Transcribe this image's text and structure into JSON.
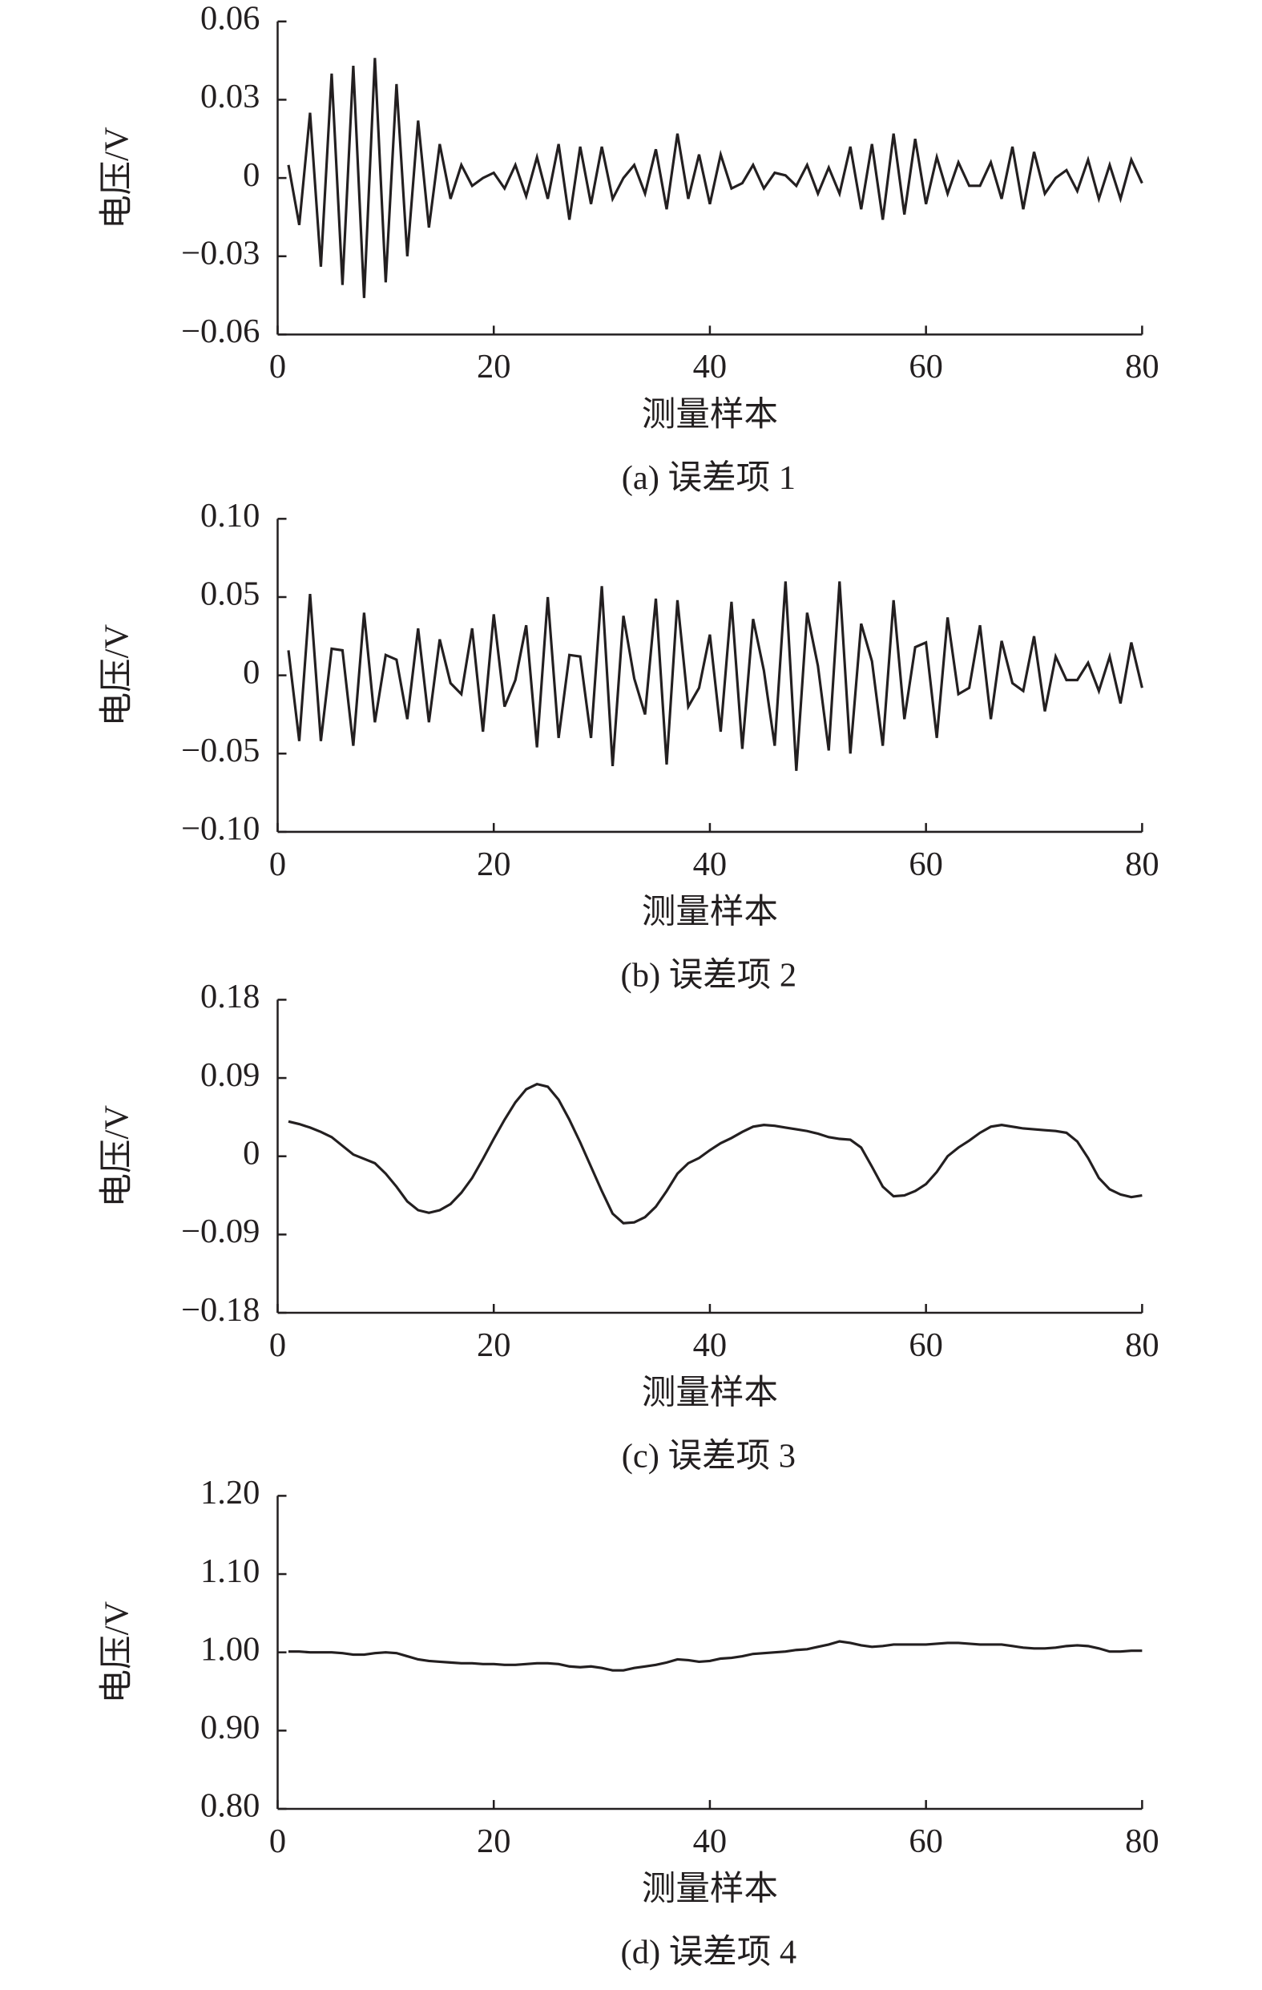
{
  "chart_data": [
    {
      "type": "line",
      "caption": "(a) 误差项 1",
      "xlabel": "测量样本",
      "ylabel": "电压/V",
      "color": "#231f20",
      "xlim": [
        0,
        80
      ],
      "xticks": [
        0,
        20,
        40,
        60,
        80
      ],
      "ylim": [
        -0.06,
        0.06
      ],
      "yticks": [
        0.06,
        0.03,
        0,
        {
          "value": -0.03,
          "label": "−0.03"
        },
        {
          "value": -0.06,
          "label": "−0.06"
        }
      ],
      "x": [
        1,
        2,
        3,
        4,
        5,
        6,
        7,
        8,
        9,
        10,
        11,
        12,
        13,
        14,
        15,
        16,
        17,
        18,
        19,
        20,
        21,
        22,
        23,
        24,
        25,
        26,
        27,
        28,
        29,
        30,
        31,
        32,
        33,
        34,
        35,
        36,
        37,
        38,
        39,
        40,
        41,
        42,
        43,
        44,
        45,
        46,
        47,
        48,
        49,
        50,
        51,
        52,
        53,
        54,
        55,
        56,
        57,
        58,
        59,
        60,
        61,
        62,
        63,
        64,
        65,
        66,
        67,
        68,
        69,
        70,
        71,
        72,
        73,
        74,
        75,
        76,
        77,
        78,
        79,
        80
      ],
      "values": [
        0.005,
        -0.018,
        0.025,
        -0.034,
        0.04,
        -0.041,
        0.043,
        -0.046,
        0.046,
        -0.04,
        0.036,
        -0.03,
        0.022,
        -0.019,
        0.013,
        -0.008,
        0.005,
        -0.003,
        0.0,
        0.002,
        -0.004,
        0.005,
        -0.007,
        0.008,
        -0.008,
        0.013,
        -0.016,
        0.012,
        -0.01,
        0.012,
        -0.008,
        0.0,
        0.005,
        -0.006,
        0.011,
        -0.012,
        0.017,
        -0.008,
        0.009,
        -0.01,
        0.009,
        -0.004,
        -0.002,
        0.005,
        -0.004,
        0.002,
        0.001,
        -0.003,
        0.005,
        -0.006,
        0.004,
        -0.006,
        0.012,
        -0.012,
        0.013,
        -0.016,
        0.017,
        -0.014,
        0.015,
        -0.01,
        0.008,
        -0.006,
        0.006,
        -0.003,
        -0.003,
        0.006,
        -0.008,
        0.012,
        -0.012,
        0.01,
        -0.006,
        0.0,
        0.003,
        -0.005,
        0.007,
        -0.008,
        0.005,
        -0.008,
        0.007,
        -0.002
      ]
    },
    {
      "type": "line",
      "caption": "(b) 误差项 2",
      "xlabel": "测量样本",
      "ylabel": "电压/V",
      "color": "#231f20",
      "xlim": [
        0,
        80
      ],
      "xticks": [
        0,
        20,
        40,
        60,
        80
      ],
      "ylim": [
        -0.1,
        0.1
      ],
      "yticks": [
        {
          "value": 0.1,
          "label": "0.10"
        },
        0.05,
        0,
        {
          "value": -0.05,
          "label": "−0.05"
        },
        {
          "value": -0.1,
          "label": "−0.10"
        }
      ],
      "x": [
        1,
        2,
        3,
        4,
        5,
        6,
        7,
        8,
        9,
        10,
        11,
        12,
        13,
        14,
        15,
        16,
        17,
        18,
        19,
        20,
        21,
        22,
        23,
        24,
        25,
        26,
        27,
        28,
        29,
        30,
        31,
        32,
        33,
        34,
        35,
        36,
        37,
        38,
        39,
        40,
        41,
        42,
        43,
        44,
        45,
        46,
        47,
        48,
        49,
        50,
        51,
        52,
        53,
        54,
        55,
        56,
        57,
        58,
        59,
        60,
        61,
        62,
        63,
        64,
        65,
        66,
        67,
        68,
        69,
        70,
        71,
        72,
        73,
        74,
        75,
        76,
        77,
        78,
        79,
        80
      ],
      "values": [
        0.016,
        -0.042,
        0.052,
        -0.042,
        0.017,
        0.016,
        -0.045,
        0.04,
        -0.03,
        0.013,
        0.01,
        -0.028,
        0.03,
        -0.03,
        0.023,
        -0.005,
        -0.012,
        0.03,
        -0.036,
        0.039,
        -0.02,
        -0.003,
        0.032,
        -0.046,
        0.05,
        -0.04,
        0.013,
        0.012,
        -0.04,
        0.057,
        -0.058,
        0.038,
        -0.002,
        -0.025,
        0.049,
        -0.057,
        0.048,
        -0.02,
        -0.008,
        0.026,
        -0.036,
        0.047,
        -0.047,
        0.036,
        0.003,
        -0.045,
        0.06,
        -0.061,
        0.04,
        0.006,
        -0.048,
        0.06,
        -0.05,
        0.033,
        0.009,
        -0.045,
        0.048,
        -0.028,
        0.018,
        0.021,
        -0.04,
        0.037,
        -0.012,
        -0.008,
        0.032,
        -0.028,
        0.022,
        -0.005,
        -0.01,
        0.025,
        -0.023,
        0.012,
        -0.003,
        -0.003,
        0.008,
        -0.01,
        0.012,
        -0.018,
        0.021,
        -0.008
      ]
    },
    {
      "type": "line",
      "caption": "(c) 误差项 3",
      "xlabel": "测量样本",
      "ylabel": "电压/V",
      "color": "#231f20",
      "xlim": [
        0,
        80
      ],
      "xticks": [
        0,
        20,
        40,
        60,
        80
      ],
      "ylim": [
        -0.18,
        0.18
      ],
      "yticks": [
        0.18,
        0.09,
        0,
        {
          "value": -0.09,
          "label": "−0.09"
        },
        {
          "value": -0.18,
          "label": "−0.18"
        }
      ],
      "x": [
        1,
        2,
        3,
        4,
        5,
        6,
        7,
        8,
        9,
        10,
        11,
        12,
        13,
        14,
        15,
        16,
        17,
        18,
        19,
        20,
        21,
        22,
        23,
        24,
        25,
        26,
        27,
        28,
        29,
        30,
        31,
        32,
        33,
        34,
        35,
        36,
        37,
        38,
        39,
        40,
        41,
        42,
        43,
        44,
        45,
        46,
        47,
        48,
        49,
        50,
        51,
        52,
        53,
        54,
        55,
        56,
        57,
        58,
        59,
        60,
        61,
        62,
        63,
        64,
        65,
        66,
        67,
        68,
        69,
        70,
        71,
        72,
        73,
        74,
        75,
        76,
        77,
        78,
        79,
        80
      ],
      "values": [
        0.04,
        0.037,
        0.033,
        0.028,
        0.022,
        0.012,
        0.002,
        -0.003,
        -0.008,
        -0.02,
        -0.035,
        -0.052,
        -0.062,
        -0.065,
        -0.062,
        -0.055,
        -0.042,
        -0.025,
        -0.003,
        0.02,
        0.042,
        0.062,
        0.077,
        0.083,
        0.08,
        0.065,
        0.042,
        0.016,
        -0.012,
        -0.04,
        -0.066,
        -0.077,
        -0.076,
        -0.07,
        -0.058,
        -0.04,
        -0.02,
        -0.008,
        -0.002,
        0.007,
        0.015,
        0.021,
        0.028,
        0.034,
        0.036,
        0.035,
        0.033,
        0.031,
        0.029,
        0.026,
        0.022,
        0.02,
        0.019,
        0.01,
        -0.012,
        -0.035,
        -0.046,
        -0.045,
        -0.04,
        -0.032,
        -0.018,
        0.0,
        0.01,
        0.018,
        0.027,
        0.034,
        0.036,
        0.034,
        0.032,
        0.031,
        0.03,
        0.029,
        0.027,
        0.017,
        -0.002,
        -0.025,
        -0.038,
        -0.044,
        -0.047,
        -0.045
      ]
    },
    {
      "type": "line",
      "caption": "(d) 误差项 4",
      "xlabel": "测量样本",
      "ylabel": "电压/V",
      "color": "#231f20",
      "xlim": [
        0,
        80
      ],
      "xticks": [
        0,
        20,
        40,
        60,
        80
      ],
      "ylim": [
        0.8,
        1.2
      ],
      "yticks": [
        {
          "value": 1.2,
          "label": "1.20"
        },
        {
          "value": 1.1,
          "label": "1.10"
        },
        {
          "value": 1.0,
          "label": "1.00"
        },
        {
          "value": 0.9,
          "label": "0.90"
        },
        {
          "value": 0.8,
          "label": "0.80"
        }
      ],
      "x": [
        1,
        2,
        3,
        4,
        5,
        6,
        7,
        8,
        9,
        10,
        11,
        12,
        13,
        14,
        15,
        16,
        17,
        18,
        19,
        20,
        21,
        22,
        23,
        24,
        25,
        26,
        27,
        28,
        29,
        30,
        31,
        32,
        33,
        34,
        35,
        36,
        37,
        38,
        39,
        40,
        41,
        42,
        43,
        44,
        45,
        46,
        47,
        48,
        49,
        50,
        51,
        52,
        53,
        54,
        55,
        56,
        57,
        58,
        59,
        60,
        61,
        62,
        63,
        64,
        65,
        66,
        67,
        68,
        69,
        70,
        71,
        72,
        73,
        74,
        75,
        76,
        77,
        78,
        79,
        80
      ],
      "values": [
        1.001,
        1.001,
        1.0,
        1.0,
        1.0,
        0.999,
        0.997,
        0.997,
        0.999,
        1.0,
        0.999,
        0.995,
        0.991,
        0.989,
        0.988,
        0.987,
        0.986,
        0.986,
        0.985,
        0.985,
        0.984,
        0.984,
        0.985,
        0.986,
        0.986,
        0.985,
        0.982,
        0.981,
        0.982,
        0.98,
        0.977,
        0.977,
        0.98,
        0.982,
        0.984,
        0.987,
        0.991,
        0.99,
        0.988,
        0.989,
        0.992,
        0.993,
        0.995,
        0.998,
        0.999,
        1.0,
        1.001,
        1.003,
        1.004,
        1.007,
        1.01,
        1.014,
        1.012,
        1.009,
        1.007,
        1.008,
        1.01,
        1.01,
        1.01,
        1.01,
        1.011,
        1.012,
        1.012,
        1.011,
        1.01,
        1.01,
        1.01,
        1.008,
        1.006,
        1.005,
        1.005,
        1.006,
        1.008,
        1.009,
        1.008,
        1.005,
        1.001,
        1.001,
        1.002,
        1.002
      ]
    }
  ]
}
